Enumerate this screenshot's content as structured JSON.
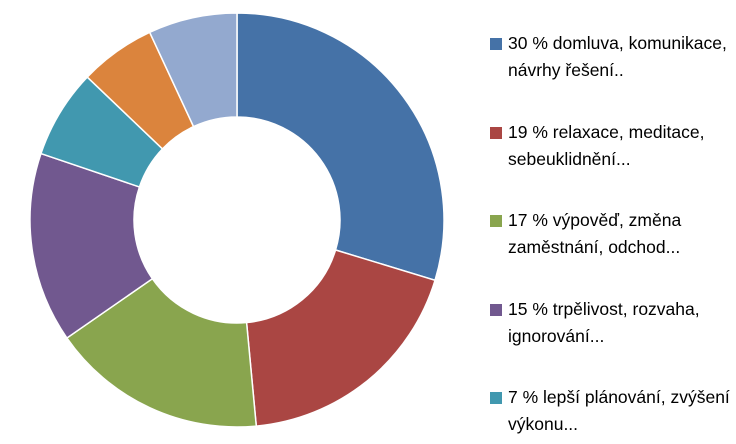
{
  "chart_data": {
    "type": "pie",
    "donut": true,
    "slices": [
      {
        "label": "30 % domluva, komunikace, návrhy řešení..",
        "value": 30,
        "color": "#4572A7"
      },
      {
        "label": "19 % relaxace, meditace, sebeuklidnění...",
        "value": 19,
        "color": "#AA4643"
      },
      {
        "label": "17 % výpověď, změna zaměstnání, odchod...",
        "value": 17,
        "color": "#89A54E"
      },
      {
        "label": "15 % trpělivost, rozvaha, ignorování...",
        "value": 15,
        "color": "#71588F"
      },
      {
        "label": "7 % lepší plánování, zvýšení výkonu...",
        "value": 7,
        "color": "#4198AF"
      },
      {
        "value": 6,
        "color": "#DB843D"
      },
      {
        "value": 7,
        "color": "#93A9CF"
      }
    ],
    "legend_position": "right"
  }
}
